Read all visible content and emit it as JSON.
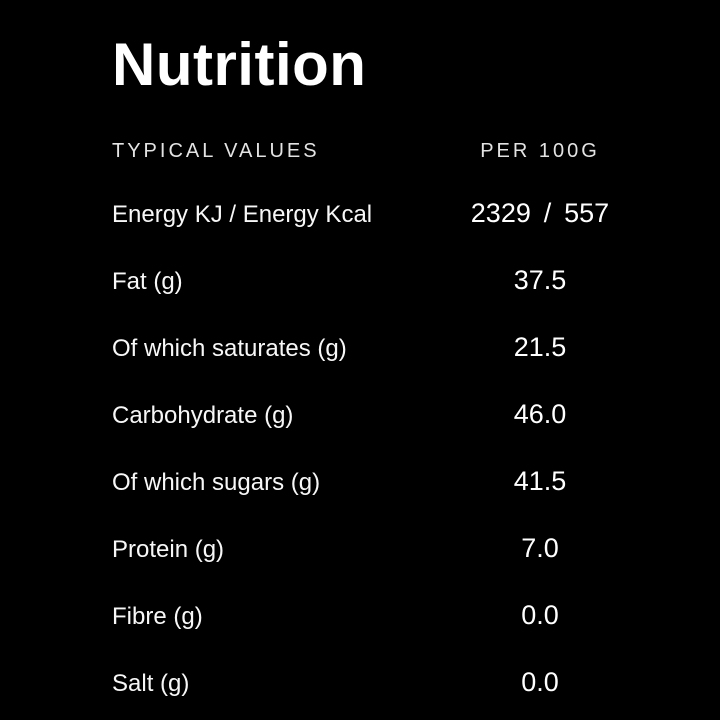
{
  "page": {
    "background_color": "#000000",
    "text_color": "#ffffff"
  },
  "title": "Nutrition",
  "table": {
    "header": {
      "left": "TYPICAL VALUES",
      "right": "PER 100G"
    },
    "rows": [
      {
        "label": "Energy KJ / Energy Kcal",
        "value": "2329 / 557"
      },
      {
        "label": "Fat (g)",
        "value": "37.5"
      },
      {
        "label": "Of which saturates (g)",
        "value": "21.5"
      },
      {
        "label": "Carbohydrate (g)",
        "value": "46.0"
      },
      {
        "label": "Of which sugars (g)",
        "value": "41.5"
      },
      {
        "label": "Protein (g)",
        "value": "7.0"
      },
      {
        "label": "Fibre (g)",
        "value": "0.0"
      },
      {
        "label": "Salt (g)",
        "value": "0.0"
      }
    ]
  }
}
